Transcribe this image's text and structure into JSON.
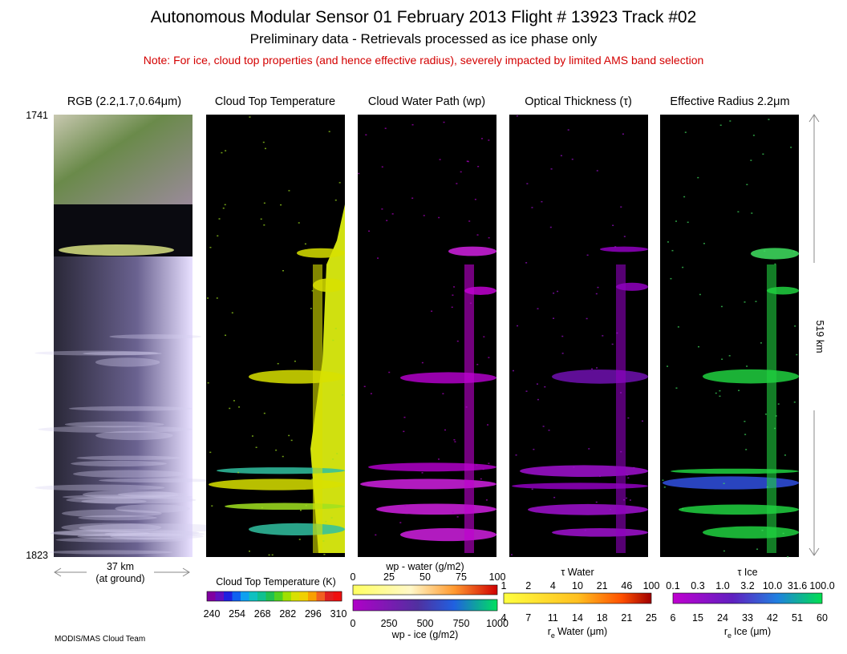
{
  "header": {
    "title": "Autonomous Modular Sensor  01 February 2013  Flight # 13923 Track #02",
    "subtitle": "Preliminary data - Retrievals processed as ice phase only",
    "note": "Note: For ice, cloud top properties (and hence effective radius), severely impacted by limited AMS band selection"
  },
  "panels": [
    "RGB (2.2,1.7,0.64μm)",
    "Cloud Top Temperature",
    "Cloud Water Path (wp)",
    "Optical Thickness (τ)",
    "Effective Radius 2.2μm"
  ],
  "scan_start": "1741",
  "scan_end": "1823",
  "swath_width": {
    "value": "37 km",
    "note": "(at ground)"
  },
  "track_length": "519 km",
  "colorbars": {
    "ctt": {
      "title": "Cloud Top Temperature (K)",
      "ticks": [
        "240",
        "254",
        "268",
        "282",
        "296",
        "310"
      ]
    },
    "wp_water": {
      "title": "wp - water (g/m2)",
      "ticks": [
        "0",
        "25",
        "50",
        "75",
        "100"
      ]
    },
    "wp_ice": {
      "title": "wp - ice (g/m2)",
      "ticks": [
        "0",
        "250",
        "500",
        "750",
        "1000"
      ]
    },
    "tau_water": {
      "title": "τ Water",
      "ticks": [
        "1",
        "2",
        "4",
        "10",
        "21",
        "46",
        "100"
      ]
    },
    "re_water": {
      "symbol": "r",
      "subscript": "e",
      "title": "Water (μm)",
      "ticks": [
        "4",
        "7",
        "11",
        "14",
        "18",
        "21",
        "25"
      ]
    },
    "tau_ice": {
      "title": "τ Ice",
      "ticks": [
        "0.1",
        "0.3",
        "1.0",
        "3.2",
        "10.0",
        "31.6",
        "100.0"
      ]
    },
    "re_ice": {
      "symbol": "r",
      "subscript": "e",
      "title": "Ice (μm)",
      "ticks": [
        "6",
        "15",
        "24",
        "33",
        "42",
        "51",
        "60"
      ]
    }
  },
  "footer": "MODIS/MAS Cloud Team"
}
